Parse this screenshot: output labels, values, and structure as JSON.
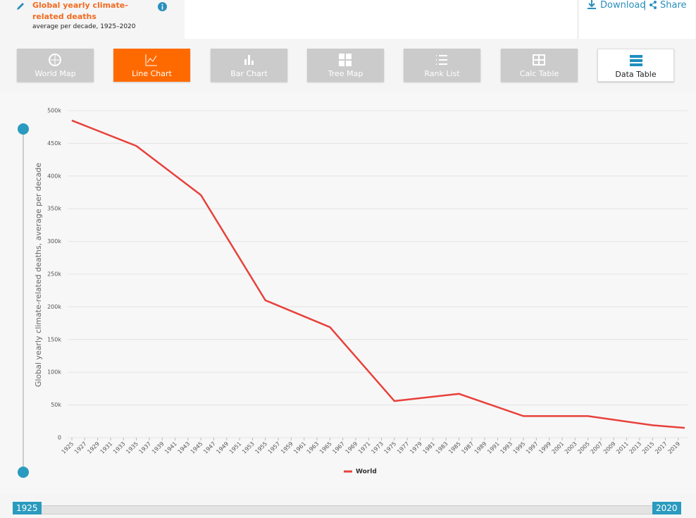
{
  "header": {
    "title": "Global yearly climate-related deaths",
    "subtitle": "average per decade, 1925–2020",
    "download": "Download",
    "separator": "|",
    "share": "Share"
  },
  "tabs": [
    "World Map",
    "Line Chart",
    "Bar Chart",
    "Tree Map",
    "Rank List",
    "Calc Table",
    "Data Table"
  ],
  "chart_data": {
    "type": "line",
    "y_label": "Global yearly climate-related deaths, average per decade",
    "x": [
      1925,
      1935,
      1945,
      1955,
      1965,
      1975,
      1985,
      1995,
      2005,
      2015,
      2020
    ],
    "series": [
      {
        "name": "World",
        "color": "#e8413b",
        "values": [
          485000,
          446000,
          371000,
          210000,
          169000,
          56000,
          67000,
          33000,
          33000,
          19000,
          15000
        ]
      }
    ],
    "xlim": [
      1925,
      2020
    ],
    "xticks": [
      1925,
      1927,
      1929,
      1931,
      1933,
      1935,
      1937,
      1939,
      1941,
      1943,
      1945,
      1947,
      1949,
      1951,
      1953,
      1955,
      1957,
      1959,
      1961,
      1963,
      1965,
      1967,
      1969,
      1971,
      1973,
      1975,
      1977,
      1979,
      1981,
      1983,
      1985,
      1987,
      1989,
      1991,
      1993,
      1995,
      1997,
      1999,
      2001,
      2003,
      2005,
      2007,
      2009,
      2011,
      2013,
      2015,
      2017,
      2019
    ],
    "ylim": [
      0,
      500000
    ],
    "yticks": [
      0,
      {
        "value": 50000,
        "label": "50k"
      },
      {
        "value": 100000,
        "label": "100k"
      },
      {
        "value": 150000,
        "label": "150k"
      },
      {
        "value": 200000,
        "label": "200k"
      },
      {
        "value": 250000,
        "label": "250k"
      },
      {
        "value": 300000,
        "label": "300k"
      },
      {
        "value": 350000,
        "label": "350k"
      },
      {
        "value": 400000,
        "label": "400k"
      },
      {
        "value": 450000,
        "label": "450k"
      },
      {
        "value": 500000,
        "label": "500k"
      }
    ],
    "grid": true
  },
  "slider": {
    "start": "1925",
    "end": "2020"
  }
}
